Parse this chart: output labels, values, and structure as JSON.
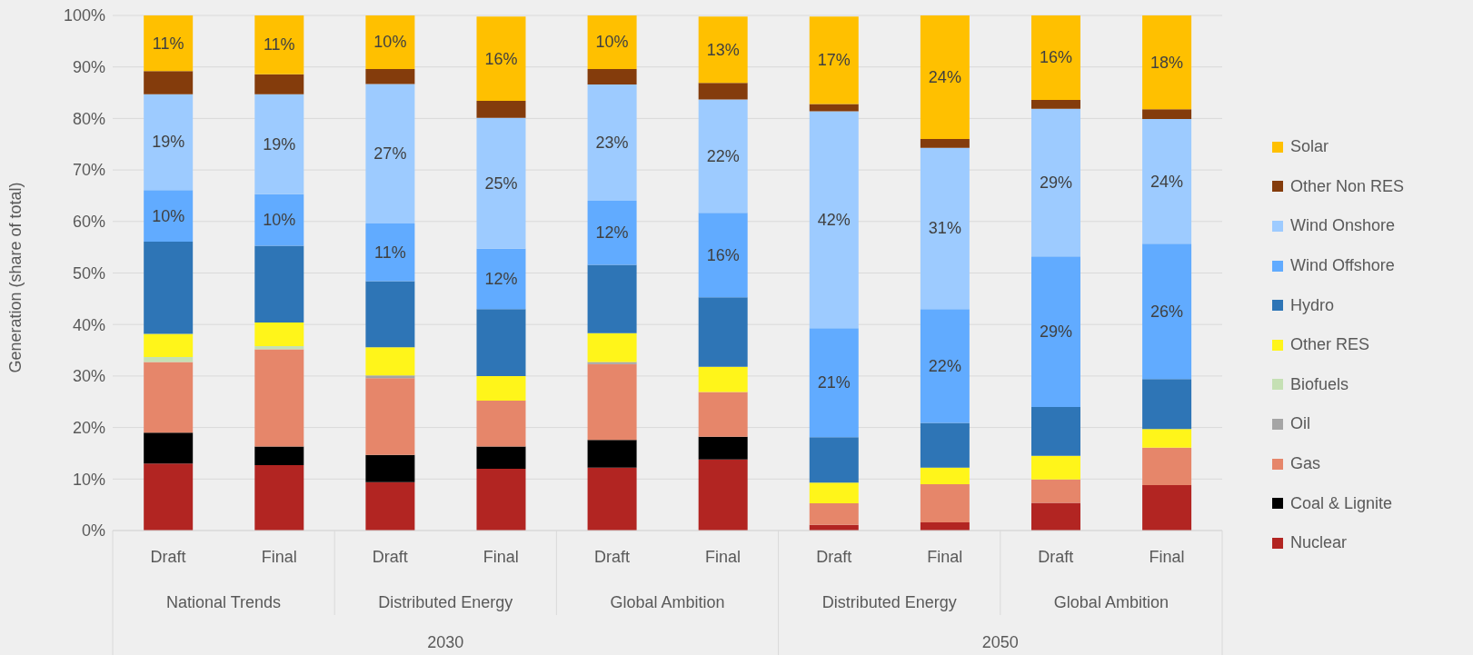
{
  "chart_data": {
    "type": "bar",
    "stacked": true,
    "ylabel": "Generation (share of total)",
    "categories": [
      "Draft",
      "Final",
      "Draft",
      "Final",
      "Draft",
      "Final",
      "Draft",
      "Final",
      "Draft",
      "Final"
    ],
    "annotations": [
      "National Trends",
      "Distributed Energy",
      "Global Ambition",
      "Distributed Energy",
      "Global Ambition",
      "2030",
      "2050"
    ],
    "ylim": [
      0,
      100
    ],
    "yticks": [
      {
        "value": 0,
        "label": "0%"
      },
      {
        "value": 10,
        "label": "10%"
      },
      {
        "value": 20,
        "label": "20%"
      },
      {
        "value": 30,
        "label": "30%"
      },
      {
        "value": 40,
        "label": "40%"
      },
      {
        "value": 50,
        "label": "50%"
      },
      {
        "value": 60,
        "label": "60%"
      },
      {
        "value": 70,
        "label": "70%"
      },
      {
        "value": 80,
        "label": "80%"
      },
      {
        "value": 90,
        "label": "90%"
      },
      {
        "value": 100,
        "label": "100%"
      }
    ],
    "grid": "y",
    "legend": "right",
    "series": [
      {
        "name": "Nuclear",
        "color": "#b22522",
        "values": [
          13.0,
          12.7,
          9.4,
          12.0,
          12.2,
          13.8,
          1.1,
          1.6,
          5.4,
          8.8
        ]
      },
      {
        "name": "Coal & Lignite",
        "color": "#000000",
        "values": [
          6.0,
          3.6,
          5.3,
          4.3,
          5.4,
          4.4,
          0,
          0,
          0,
          0
        ]
      },
      {
        "name": "Gas",
        "color": "#e6866a",
        "values": [
          13.7,
          18.9,
          14.9,
          8.9,
          14.7,
          8.7,
          4.2,
          7.4,
          4.5,
          7.3
        ]
      },
      {
        "name": "Oil",
        "color": "#a5a5a5",
        "values": [
          0,
          0,
          0.5,
          0,
          0.4,
          0,
          null,
          0,
          0,
          0
        ]
      },
      {
        "name": "Biofuels",
        "color": "#c5e0b4",
        "values": [
          1.0,
          0.6,
          0,
          null,
          0,
          null,
          0,
          0,
          0,
          0
        ]
      },
      {
        "name": "Other RES",
        "color": "#fff51a",
        "values": [
          4.5,
          4.6,
          5.5,
          4.8,
          5.6,
          4.9,
          4.0,
          3.2,
          4.6,
          3.6
        ]
      },
      {
        "name": "Hydro",
        "color": "#2e75b6",
        "values": [
          17.9,
          14.9,
          12.8,
          13.0,
          13.3,
          13.5,
          8.8,
          8.7,
          9.5,
          9.7
        ]
      },
      {
        "name": "Wind Offshore",
        "color": "#61abff",
        "values": [
          10.0,
          10.0,
          11.2,
          11.7,
          12.4,
          16.4,
          21.2,
          22.1,
          29.2,
          26.3
        ],
        "value_labels": [
          "10%",
          "10%",
          "11%",
          "12%",
          "12%",
          "16%",
          "21%",
          "22%",
          "29%",
          "26%"
        ]
      },
      {
        "name": "Wind Onshore",
        "color": "#9dcbff",
        "values": [
          18.6,
          19.4,
          27.1,
          25.4,
          22.6,
          22.0,
          42.1,
          31.3,
          28.7,
          24.2
        ],
        "value_labels": [
          "19%",
          "19%",
          "27%",
          "25%",
          "23%",
          "22%",
          "42%",
          "31%",
          "29%",
          "24%"
        ]
      },
      {
        "name": "Other Non RES",
        "color": "#843c0c",
        "values": [
          4.5,
          3.9,
          2.9,
          3.3,
          3.0,
          3.2,
          1.4,
          1.7,
          1.7,
          1.9
        ]
      },
      {
        "name": "Solar",
        "color": "#ffc000",
        "values": [
          10.8,
          11.4,
          10.4,
          16.4,
          10.4,
          12.9,
          17.0,
          24.0,
          16.4,
          18.2
        ],
        "value_labels": [
          "11%",
          "11%",
          "10%",
          "16%",
          "10%",
          "13%",
          "17%",
          "24%",
          "16%",
          "18%"
        ]
      }
    ]
  }
}
